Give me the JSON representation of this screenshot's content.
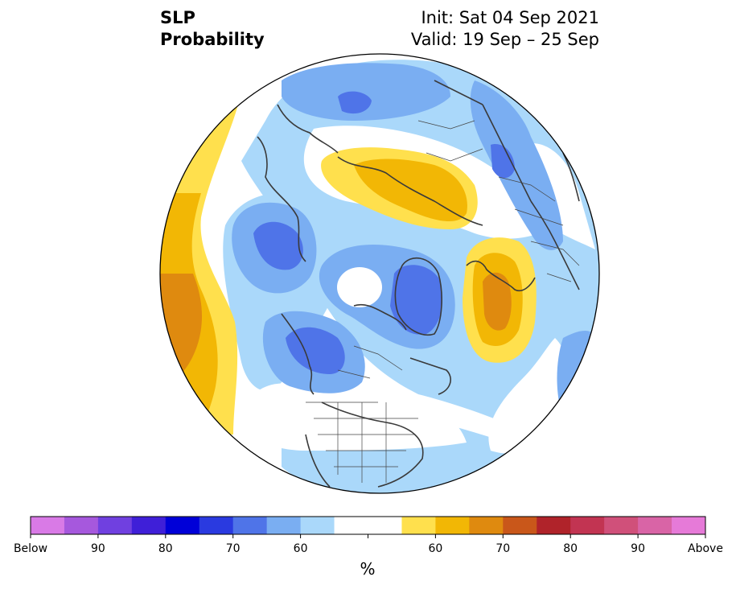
{
  "header": {
    "variable": "SLP",
    "product": "Probability",
    "init": "Init: Sat 04 Sep 2021",
    "valid": "Valid: 19 Sep – 25 Sep"
  },
  "colorbar": {
    "unit": "%",
    "colors": [
      "#d97ae6",
      "#a658dd",
      "#7040e0",
      "#3f1fd8",
      "#0000d8",
      "#2a3ae0",
      "#4f74e8",
      "#7aaef2",
      "#aad8fa",
      "#ffffff",
      "#ffffff",
      "#ffe04d",
      "#f2b705",
      "#df8a0f",
      "#c9571a",
      "#b0232a",
      "#c23452",
      "#d0507a",
      "#d964a6",
      "#e67ad8"
    ],
    "labels": [
      {
        "text": "Below",
        "index": 0
      },
      {
        "text": "90",
        "index": 2
      },
      {
        "text": "80",
        "index": 4
      },
      {
        "text": "70",
        "index": 6
      },
      {
        "text": "60",
        "index": 8
      },
      {
        "text": "60",
        "index": 12
      },
      {
        "text": "70",
        "index": 14
      },
      {
        "text": "80",
        "index": 16
      },
      {
        "text": "90",
        "index": 18
      },
      {
        "text": "Above",
        "index": 20
      }
    ]
  },
  "map": {
    "projection": "north polar stereographic",
    "background": "#ffffff",
    "coastline_color": "#3a3a3a",
    "border_color": "#444444"
  }
}
